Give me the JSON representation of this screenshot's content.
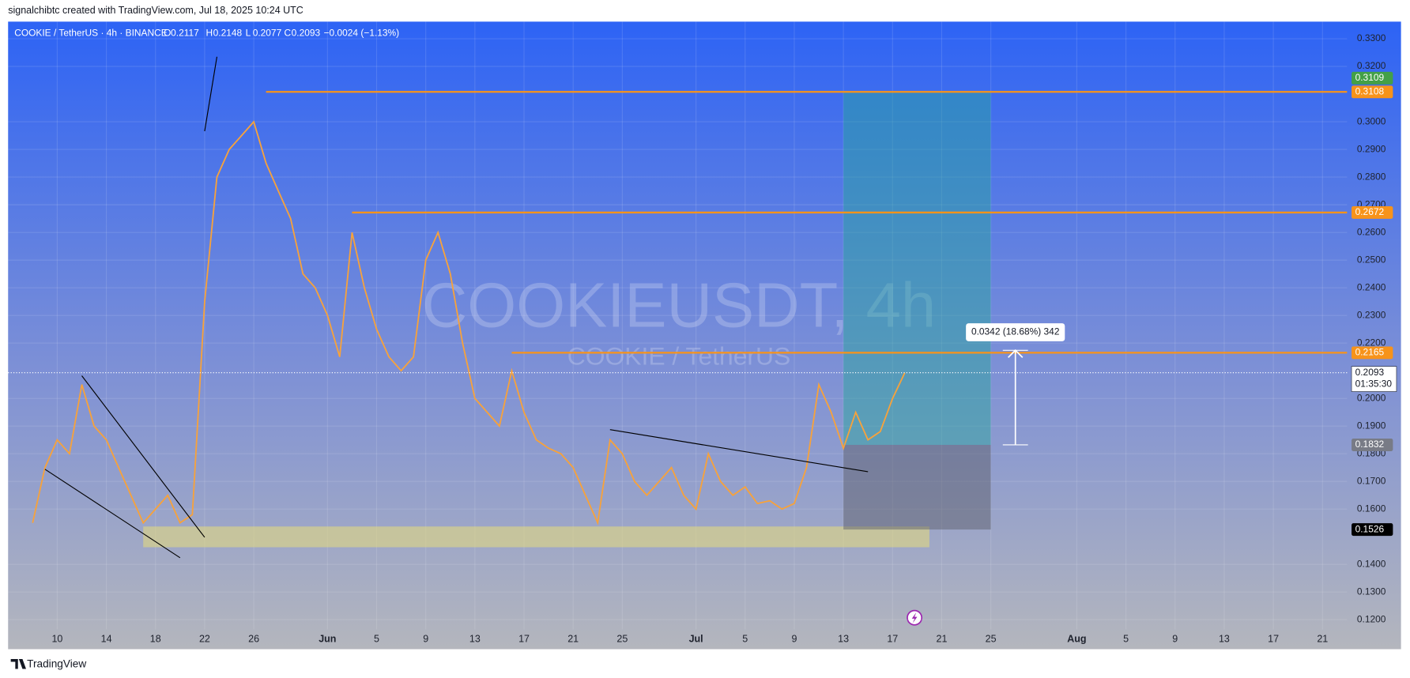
{
  "header": "signalchibtc created with TradingView.com, Jul 18, 2025 10:24 UTC",
  "footer": "TradingView",
  "chart_data": {
    "type": "line",
    "symbol": "COOKIE / TetherUS · 4h · BINANCE",
    "ohlc": [
      {
        "key": "O",
        "value": 0.2117
      },
      {
        "key": "H",
        "value": 0.2148
      },
      {
        "key": "L",
        "value": 0.2077
      },
      {
        "key": "C",
        "value": 0.2093
      }
    ],
    "change": "−0.0024 (−1.13%)",
    "watermark": [
      "COOKIEUSDT, 4h",
      "COOKIE / TetherUS"
    ],
    "color": "#f7a23b",
    "x": [
      "2025-05-08",
      "2025-05-09",
      "2025-05-10",
      "2025-05-11",
      "2025-05-12",
      "2025-05-13",
      "2025-05-14",
      "2025-05-15",
      "2025-05-16",
      "2025-05-17",
      "2025-05-18",
      "2025-05-19",
      "2025-05-20",
      "2025-05-21",
      "2025-05-22",
      "2025-05-23",
      "2025-05-24",
      "2025-05-25",
      "2025-05-26",
      "2025-05-27",
      "2025-05-28",
      "2025-05-29",
      "2025-05-30",
      "2025-05-31",
      "2025-06-01",
      "2025-06-02",
      "2025-06-03",
      "2025-06-04",
      "2025-06-05",
      "2025-06-06",
      "2025-06-07",
      "2025-06-08",
      "2025-06-09",
      "2025-06-10",
      "2025-06-11",
      "2025-06-12",
      "2025-06-13",
      "2025-06-14",
      "2025-06-15",
      "2025-06-16",
      "2025-06-17",
      "2025-06-18",
      "2025-06-19",
      "2025-06-20",
      "2025-06-21",
      "2025-06-22",
      "2025-06-23",
      "2025-06-24",
      "2025-06-25",
      "2025-06-26",
      "2025-06-27",
      "2025-06-28",
      "2025-06-29",
      "2025-06-30",
      "2025-07-01",
      "2025-07-02",
      "2025-07-03",
      "2025-07-04",
      "2025-07-05",
      "2025-07-06",
      "2025-07-07",
      "2025-07-08",
      "2025-07-09",
      "2025-07-10",
      "2025-07-11",
      "2025-07-12",
      "2025-07-13",
      "2025-07-14",
      "2025-07-15",
      "2025-07-16",
      "2025-07-17",
      "2025-07-18"
    ],
    "values": [
      0.155,
      0.175,
      0.185,
      0.18,
      0.205,
      0.19,
      0.185,
      0.175,
      0.165,
      0.155,
      0.16,
      0.165,
      0.155,
      0.158,
      0.235,
      0.28,
      0.29,
      0.295,
      0.3,
      0.285,
      0.275,
      0.265,
      0.245,
      0.24,
      0.23,
      0.215,
      0.26,
      0.24,
      0.225,
      0.215,
      0.21,
      0.215,
      0.25,
      0.26,
      0.245,
      0.22,
      0.2,
      0.195,
      0.19,
      0.21,
      0.195,
      0.185,
      0.182,
      0.18,
      0.175,
      0.165,
      0.155,
      0.185,
      0.18,
      0.17,
      0.165,
      0.17,
      0.175,
      0.165,
      0.16,
      0.18,
      0.17,
      0.165,
      0.168,
      0.162,
      0.163,
      0.16,
      0.162,
      0.175,
      0.205,
      0.195,
      0.182,
      0.195,
      0.185,
      0.188,
      0.2,
      0.2093
    ],
    "last_price": 0.2093,
    "countdown": "01:35:30",
    "xlim": [
      "2025-05-06",
      "2025-08-23"
    ],
    "xticks": [
      {
        "value": "2025-05-10",
        "label": "10"
      },
      {
        "value": "2025-05-14",
        "label": "14"
      },
      {
        "value": "2025-05-18",
        "label": "18"
      },
      {
        "value": "2025-05-22",
        "label": "22"
      },
      {
        "value": "2025-05-26",
        "label": "26"
      },
      {
        "value": "2025-06-01",
        "label": "Jun"
      },
      {
        "value": "2025-06-05",
        "label": "5"
      },
      {
        "value": "2025-06-09",
        "label": "9"
      },
      {
        "value": "2025-06-13",
        "label": "13"
      },
      {
        "value": "2025-06-17",
        "label": "17"
      },
      {
        "value": "2025-06-21",
        "label": "21"
      },
      {
        "value": "2025-06-25",
        "label": "25"
      },
      {
        "value": "2025-07-01",
        "label": "Jul"
      },
      {
        "value": "2025-07-05",
        "label": "5"
      },
      {
        "value": "2025-07-09",
        "label": "9"
      },
      {
        "value": "2025-07-13",
        "label": "13"
      },
      {
        "value": "2025-07-17",
        "label": "17"
      },
      {
        "value": "2025-07-21",
        "label": "21"
      },
      {
        "value": "2025-07-25",
        "label": "25"
      },
      {
        "value": "2025-08-01",
        "label": "Aug"
      },
      {
        "value": "2025-08-05",
        "label": "5"
      },
      {
        "value": "2025-08-09",
        "label": "9"
      },
      {
        "value": "2025-08-13",
        "label": "13"
      },
      {
        "value": "2025-08-17",
        "label": "17"
      },
      {
        "value": "2025-08-21",
        "label": "21"
      }
    ],
    "ylim": [
      0.1165,
      0.3362
    ],
    "yticks": [
      {
        "value": 0.33,
        "label": "0.3300"
      },
      {
        "value": 0.32,
        "label": "0.3200"
      },
      {
        "value": 0.3,
        "label": "0.3000"
      },
      {
        "value": 0.29,
        "label": "0.2900"
      },
      {
        "value": 0.28,
        "label": "0.2800"
      },
      {
        "value": 0.27,
        "label": "0.2700"
      },
      {
        "value": 0.26,
        "label": "0.2600"
      },
      {
        "value": 0.25,
        "label": "0.2500"
      },
      {
        "value": 0.24,
        "label": "0.2400"
      },
      {
        "value": 0.23,
        "label": "0.2300"
      },
      {
        "value": 0.22,
        "label": "0.2200"
      },
      {
        "value": 0.2,
        "label": "0.2000"
      },
      {
        "value": 0.19,
        "label": "0.1900"
      },
      {
        "value": 0.18,
        "label": "0.1800"
      },
      {
        "value": 0.17,
        "label": "0.1700"
      },
      {
        "value": 0.16,
        "label": "0.1600"
      },
      {
        "value": 0.14,
        "label": "0.1400"
      },
      {
        "value": 0.13,
        "label": "0.1300"
      },
      {
        "value": 0.12,
        "label": "0.1200"
      }
    ],
    "grid": true,
    "levels": [
      {
        "value": 0.3108,
        "start": "2025-05-27",
        "color": "#f7931a"
      },
      {
        "value": 0.2672,
        "start": "2025-06-03",
        "color": "#f7931a"
      },
      {
        "value": 0.2165,
        "start": "2025-06-16",
        "color": "#f7931a"
      }
    ],
    "position": {
      "entry": 0.1832,
      "target": 0.3109,
      "stop": 0.1526,
      "start": "2025-07-13",
      "end": "2025-07-25",
      "target_color": "#43a047",
      "entry_color": "#787b86",
      "stop_color": "#000000"
    },
    "zone": {
      "top": 0.1537,
      "bottom": 0.1462,
      "start": "2025-05-17",
      "end": "2025-07-20",
      "color": "#e8dc7a"
    },
    "trendlines": [
      [
        [
          "2025-05-12",
          0.2082
        ],
        [
          "2025-05-22",
          0.1498
        ]
      ],
      [
        [
          "2025-05-09",
          0.1744
        ],
        [
          "2025-05-20",
          0.1424
        ]
      ],
      [
        [
          "2025-06-24",
          0.1887
        ],
        [
          "2025-07-15",
          0.1735
        ]
      ],
      [
        [
          "2025-05-22",
          0.2966
        ],
        [
          "2025-05-23",
          0.3235
        ]
      ]
    ],
    "measure": {
      "from": 0.1832,
      "to": 0.2174,
      "date": "2025-07-27",
      "label": "0.0342 (18.68%) 342"
    }
  }
}
